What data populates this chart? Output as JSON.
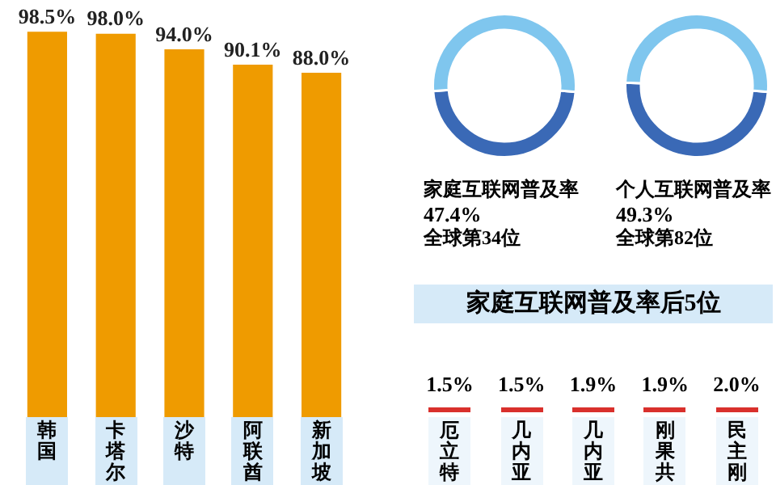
{
  "chart_data": [
    {
      "type": "bar",
      "categories": [
        "韩国",
        "卡塔尔",
        "沙特",
        "阿联酋",
        "新加坡"
      ],
      "values": [
        98.5,
        98.0,
        94.0,
        90.1,
        88.0
      ],
      "value_labels": [
        "98.5%",
        "98.0%",
        "94.0%",
        "90.1%",
        "88.0%"
      ],
      "color": "#ef9b00",
      "ylim": [
        0,
        100
      ],
      "tick_labels": "x"
    },
    {
      "type": "donut",
      "title": "家庭互联网普及率",
      "categories": [
        null,
        null
      ],
      "values": [
        47.4,
        52.6
      ],
      "colors": [
        "#3a69b6",
        "#7fc6ee"
      ],
      "value_labels": [
        "47.4%",
        null
      ],
      "annotations": [
        "全球第34位"
      ]
    },
    {
      "type": "donut",
      "title": "个人互联网普及率",
      "categories": [
        null,
        null
      ],
      "values": [
        49.3,
        50.7
      ],
      "colors": [
        "#3a69b6",
        "#7fc6ee"
      ],
      "value_labels": [
        "49.3%",
        null
      ],
      "annotations": [
        "全球第82位"
      ]
    },
    {
      "type": "other",
      "title": "家庭互联网普及率后5位",
      "categories": [
        "厄立特",
        "几内亚",
        "几内亚",
        "刚果共",
        "民主刚"
      ],
      "value_labels": [
        "1.5%",
        "1.5%",
        "1.9%",
        "1.9%",
        "2.0%"
      ],
      "color": "#d9302c"
    }
  ]
}
